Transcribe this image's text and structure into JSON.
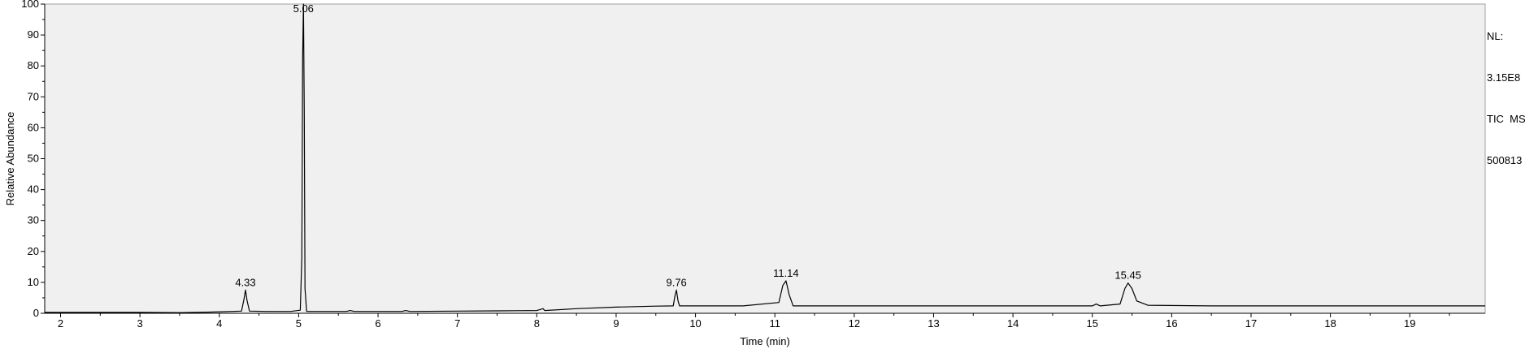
{
  "chart_data": {
    "type": "line",
    "xlabel": "Time (min)",
    "ylabel": "Relative Abundance",
    "xlim": [
      1.8,
      19.95
    ],
    "ylim": [
      0,
      100
    ],
    "x_ticks": [
      2,
      3,
      4,
      5,
      6,
      7,
      8,
      9,
      10,
      11,
      12,
      13,
      14,
      15,
      16,
      17,
      18,
      19
    ],
    "y_ticks": [
      0,
      10,
      20,
      30,
      40,
      50,
      60,
      70,
      80,
      90,
      100
    ],
    "grid": false,
    "series": [
      {
        "x": [
          1.8,
          2.5,
          3.0,
          3.5,
          3.9,
          4.28,
          4.31,
          4.33,
          4.35,
          4.38,
          4.6,
          4.9,
          5.02,
          5.04,
          5.05,
          5.06,
          5.07,
          5.08,
          5.1,
          5.6,
          5.65,
          5.7,
          6.0,
          6.3,
          6.35,
          6.4,
          7.0,
          7.5,
          8.0,
          8.08,
          8.1,
          8.5,
          9.0,
          9.5,
          9.72,
          9.74,
          9.76,
          9.78,
          9.8,
          10.2,
          10.6,
          11.05,
          11.1,
          11.14,
          11.18,
          11.23,
          11.5,
          12.5,
          13.5,
          14.5,
          15.0,
          15.05,
          15.1,
          15.35,
          15.41,
          15.45,
          15.5,
          15.56,
          15.7,
          16.5,
          17.5,
          18.5,
          19.5,
          19.95
        ],
        "y": [
          0.3,
          0.3,
          0.3,
          0.2,
          0.4,
          0.7,
          4.5,
          7.5,
          4.0,
          0.7,
          0.6,
          0.6,
          1.0,
          18.0,
          83.0,
          100.0,
          65.0,
          8.0,
          0.6,
          0.6,
          0.9,
          0.6,
          0.6,
          0.6,
          0.9,
          0.6,
          0.7,
          0.8,
          0.9,
          1.5,
          0.9,
          1.5,
          2.0,
          2.3,
          2.4,
          5.5,
          7.5,
          4.0,
          2.4,
          2.4,
          2.4,
          3.5,
          9.0,
          10.5,
          6.0,
          2.4,
          2.4,
          2.4,
          2.4,
          2.4,
          2.4,
          3.0,
          2.4,
          3.0,
          8.0,
          9.8,
          8.0,
          4.0,
          2.6,
          2.4,
          2.4,
          2.4,
          2.4,
          2.4
        ]
      }
    ],
    "annotations": [
      {
        "x": 4.33,
        "y": 7.5,
        "text": "4.33"
      },
      {
        "x": 5.06,
        "y": 100,
        "text": "5.06"
      },
      {
        "x": 9.76,
        "y": 7.5,
        "text": "9.76"
      },
      {
        "x": 11.14,
        "y": 10.5,
        "text": "11.14"
      },
      {
        "x": 15.45,
        "y": 9.8,
        "text": "15.45"
      }
    ]
  },
  "info": {
    "nl_label": "NL:",
    "nl_value": "3.15E8",
    "scan_filter": "TIC  MS",
    "file_name": "500813"
  },
  "colors": {
    "plot_background": "#f0f0f0",
    "trace": "#000000"
  }
}
